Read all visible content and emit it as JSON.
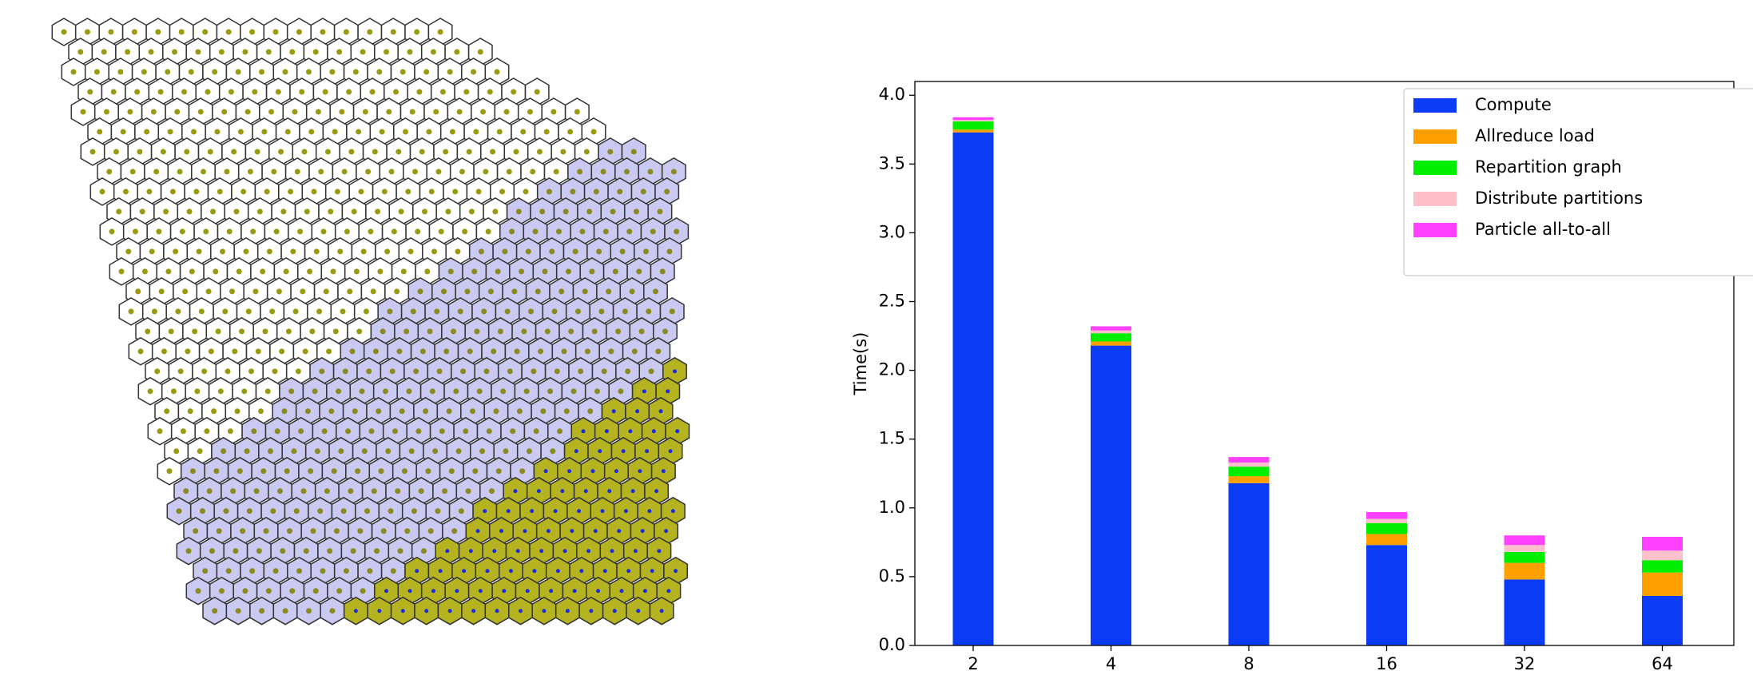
{
  "chart_data": {
    "type": "stacked-bar",
    "y_label": "Time(s)",
    "categories": [
      "2",
      "4",
      "8",
      "16",
      "32",
      "64"
    ],
    "series": [
      {
        "name": "Compute",
        "color": "#0a3cf5",
        "values": [
          3.73,
          2.18,
          1.18,
          0.73,
          0.48,
          0.36
        ]
      },
      {
        "name": "Allreduce load",
        "color": "#ff9f00",
        "values": [
          0.02,
          0.03,
          0.05,
          0.08,
          0.12,
          0.17
        ]
      },
      {
        "name": "Repartition graph",
        "color": "#00ee00",
        "values": [
          0.06,
          0.06,
          0.07,
          0.08,
          0.08,
          0.09
        ]
      },
      {
        "name": "Distribute partitions",
        "color": "#ffc0cb",
        "values": [
          0.01,
          0.02,
          0.03,
          0.03,
          0.05,
          0.07
        ]
      },
      {
        "name": "Particle all-to-all",
        "color": "#ff40ff",
        "values": [
          0.02,
          0.03,
          0.04,
          0.05,
          0.07,
          0.1
        ]
      }
    ],
    "ylim": [
      0,
      4.1
    ],
    "yticks": [
      {
        "value": 0,
        "label": "0.0"
      },
      0.5,
      {
        "value": 1,
        "label": "1.0"
      },
      1.5,
      {
        "value": 2,
        "label": "2.0"
      },
      2.5,
      {
        "value": 3,
        "label": "3.0"
      },
      3.5,
      {
        "value": 4,
        "label": "4.0"
      }
    ],
    "legend": "upper right"
  }
}
